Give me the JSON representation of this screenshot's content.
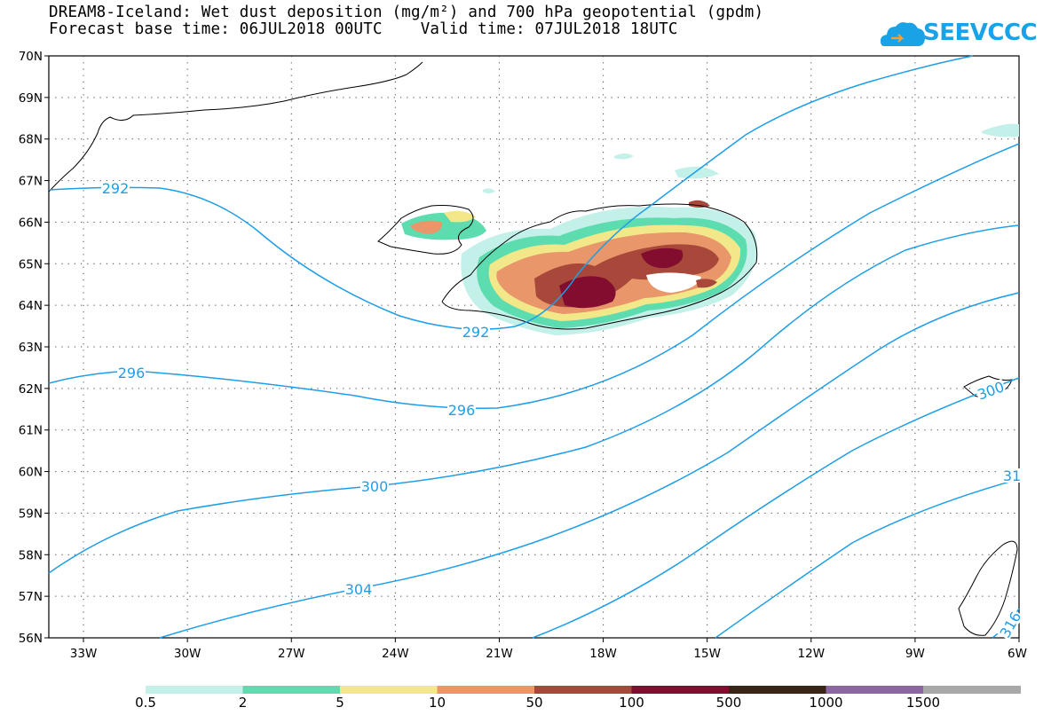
{
  "title": {
    "line1": "DREAM8-Iceland: Wet dust deposition (mg/m²) and 700 hPa geopotential (gpdm)",
    "line2": "Forecast base time: 06JUL2018 00UTC    Valid time: 07JUL2018 18UTC"
  },
  "logo": {
    "text": "SEEVCCC",
    "icon": "cloud-icon",
    "color": "#1aa2e6"
  },
  "map": {
    "lat_range": [
      "56N",
      "70N"
    ],
    "lon_range": [
      "34W",
      "6W"
    ],
    "lat_labels": [
      "70N",
      "69N",
      "68N",
      "67N",
      "66N",
      "65N",
      "64N",
      "63N",
      "62N",
      "61N",
      "60N",
      "59N",
      "58N",
      "57N",
      "56N"
    ],
    "lon_labels": [
      "33W",
      "30W",
      "27W",
      "24W",
      "21W",
      "18W",
      "15W",
      "12W",
      "9W",
      "6W"
    ],
    "contour_color": "#1e9ee8",
    "contour_labels": [
      {
        "id": "c292a",
        "text": "292"
      },
      {
        "id": "c292b",
        "text": "292"
      },
      {
        "id": "c296a",
        "text": "296"
      },
      {
        "id": "c296b",
        "text": "296"
      },
      {
        "id": "c300",
        "text": "300"
      },
      {
        "id": "c300e",
        "text": "300"
      },
      {
        "id": "c304",
        "text": "304"
      },
      {
        "id": "c31",
        "text": "31"
      },
      {
        "id": "c316",
        "text": "316"
      }
    ]
  },
  "colorbar": {
    "labels": [
      "0.5",
      "2",
      "5",
      "10",
      "50",
      "100",
      "500",
      "1000",
      "1500"
    ],
    "colors": [
      "#c4f0ea",
      "#5ddcb0",
      "#f2e88a",
      "#e8966a",
      "#a8483a",
      "#820d2e",
      "#3a2418",
      "#8b66a0",
      "#a8a8a8"
    ]
  }
}
